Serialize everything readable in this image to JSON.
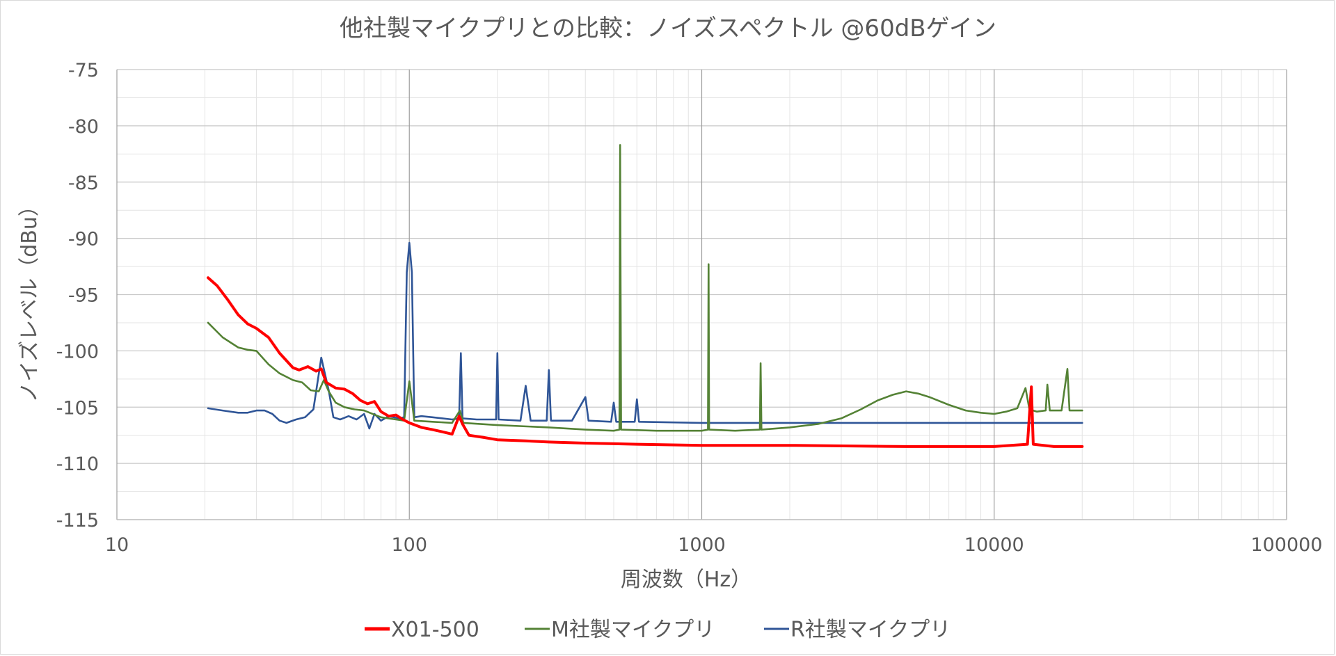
{
  "chart_data": {
    "type": "line",
    "title": "他社製マイクプリとの比較：ノイズスペクトル @60dBゲイン",
    "xlabel": "周波数（Hz）",
    "ylabel": "ノイズレベル（dBu）",
    "xscale": "log",
    "xlim": [
      10,
      100000
    ],
    "ylim": [
      -115,
      -75
    ],
    "x_ticks": [
      "10",
      "100",
      "1000",
      "10000",
      "100000"
    ],
    "y_ticks": [
      "-75",
      "-80",
      "-85",
      "-90",
      "-95",
      "-100",
      "-105",
      "-110",
      "-115"
    ],
    "grid": true,
    "legend_position": "bottom",
    "series": [
      {
        "name": "X01-500",
        "color": "#ff0000",
        "points": [
          [
            20.5,
            -93.5
          ],
          [
            22,
            -94.2
          ],
          [
            24,
            -95.5
          ],
          [
            26,
            -96.8
          ],
          [
            28,
            -97.6
          ],
          [
            30,
            -98.0
          ],
          [
            33,
            -98.8
          ],
          [
            36,
            -100.2
          ],
          [
            40,
            -101.5
          ],
          [
            42,
            -101.7
          ],
          [
            45,
            -101.4
          ],
          [
            48,
            -101.8
          ],
          [
            50,
            -101.6
          ],
          [
            52,
            -102.8
          ],
          [
            56,
            -103.3
          ],
          [
            60,
            -103.4
          ],
          [
            64,
            -103.8
          ],
          [
            68,
            -104.4
          ],
          [
            72,
            -104.7
          ],
          [
            76,
            -104.5
          ],
          [
            80,
            -105.4
          ],
          [
            85,
            -105.8
          ],
          [
            90,
            -105.7
          ],
          [
            95,
            -106.1
          ],
          [
            100,
            -106.4
          ],
          [
            110,
            -106.8
          ],
          [
            120,
            -107.0
          ],
          [
            130,
            -107.2
          ],
          [
            140,
            -107.4
          ],
          [
            148,
            -105.8
          ],
          [
            152,
            -106.5
          ],
          [
            160,
            -107.5
          ],
          [
            180,
            -107.7
          ],
          [
            200,
            -107.9
          ],
          [
            250,
            -108.0
          ],
          [
            300,
            -108.1
          ],
          [
            400,
            -108.2
          ],
          [
            600,
            -108.3
          ],
          [
            1000,
            -108.4
          ],
          [
            2000,
            -108.4
          ],
          [
            5000,
            -108.5
          ],
          [
            10000,
            -108.5
          ],
          [
            13000,
            -108.3
          ],
          [
            13400,
            -103.2
          ],
          [
            13600,
            -108.3
          ],
          [
            16000,
            -108.5
          ],
          [
            20000,
            -108.5
          ]
        ]
      },
      {
        "name": "M社製マイクプリ",
        "color": "#548235",
        "points": [
          [
            20.5,
            -97.5
          ],
          [
            23,
            -98.8
          ],
          [
            26,
            -99.7
          ],
          [
            28,
            -99.9
          ],
          [
            30,
            -100.0
          ],
          [
            33,
            -101.2
          ],
          [
            36,
            -102.0
          ],
          [
            40,
            -102.6
          ],
          [
            43,
            -102.8
          ],
          [
            46,
            -103.5
          ],
          [
            49,
            -103.6
          ],
          [
            51,
            -102.6
          ],
          [
            53,
            -103.6
          ],
          [
            56,
            -104.6
          ],
          [
            60,
            -105.0
          ],
          [
            65,
            -105.2
          ],
          [
            70,
            -105.3
          ],
          [
            80,
            -105.9
          ],
          [
            90,
            -106.1
          ],
          [
            96,
            -106.2
          ],
          [
            100,
            -102.7
          ],
          [
            104,
            -106.2
          ],
          [
            120,
            -106.3
          ],
          [
            140,
            -106.4
          ],
          [
            149,
            -105.3
          ],
          [
            153,
            -106.4
          ],
          [
            200,
            -106.6
          ],
          [
            300,
            -106.8
          ],
          [
            400,
            -107.0
          ],
          [
            500,
            -107.1
          ],
          [
            523,
            -107.0
          ],
          [
            526,
            -81.7
          ],
          [
            530,
            -107.0
          ],
          [
            700,
            -107.1
          ],
          [
            1000,
            -107.1
          ],
          [
            1050,
            -107.0
          ],
          [
            1055,
            -92.3
          ],
          [
            1060,
            -107.0
          ],
          [
            1300,
            -107.1
          ],
          [
            1580,
            -107.0
          ],
          [
            1590,
            -101.1
          ],
          [
            1600,
            -107.0
          ],
          [
            2000,
            -106.8
          ],
          [
            2500,
            -106.5
          ],
          [
            3000,
            -106.0
          ],
          [
            3500,
            -105.2
          ],
          [
            4000,
            -104.4
          ],
          [
            4500,
            -103.9
          ],
          [
            5000,
            -103.6
          ],
          [
            5500,
            -103.8
          ],
          [
            6000,
            -104.1
          ],
          [
            7000,
            -104.8
          ],
          [
            8000,
            -105.3
          ],
          [
            9000,
            -105.5
          ],
          [
            10000,
            -105.6
          ],
          [
            11000,
            -105.4
          ],
          [
            12000,
            -105.1
          ],
          [
            12800,
            -103.3
          ],
          [
            13200,
            -105.2
          ],
          [
            14000,
            -105.4
          ],
          [
            15000,
            -105.3
          ],
          [
            15200,
            -103.0
          ],
          [
            15500,
            -105.3
          ],
          [
            17000,
            -105.3
          ],
          [
            17800,
            -101.6
          ],
          [
            18100,
            -105.3
          ],
          [
            19000,
            -105.3
          ],
          [
            20000,
            -105.3
          ]
        ]
      },
      {
        "name": "R社製マイクプリ",
        "color": "#2f5597",
        "points": [
          [
            20.5,
            -105.1
          ],
          [
            23,
            -105.3
          ],
          [
            26,
            -105.5
          ],
          [
            28,
            -105.5
          ],
          [
            30,
            -105.3
          ],
          [
            32,
            -105.3
          ],
          [
            34,
            -105.6
          ],
          [
            36,
            -106.2
          ],
          [
            38,
            -106.4
          ],
          [
            41,
            -106.1
          ],
          [
            44,
            -105.9
          ],
          [
            47,
            -105.2
          ],
          [
            50,
            -100.6
          ],
          [
            53,
            -103.5
          ],
          [
            55,
            -105.9
          ],
          [
            58,
            -106.1
          ],
          [
            62,
            -105.8
          ],
          [
            66,
            -106.1
          ],
          [
            70,
            -105.6
          ],
          [
            73,
            -106.9
          ],
          [
            76,
            -105.6
          ],
          [
            80,
            -106.2
          ],
          [
            85,
            -105.8
          ],
          [
            92,
            -106.0
          ],
          [
            96,
            -105.9
          ],
          [
            98,
            -93.0
          ],
          [
            100,
            -90.4
          ],
          [
            102,
            -93.0
          ],
          [
            104,
            -105.9
          ],
          [
            110,
            -105.8
          ],
          [
            120,
            -105.9
          ],
          [
            140,
            -106.1
          ],
          [
            148,
            -106.0
          ],
          [
            150,
            -100.2
          ],
          [
            152,
            -106.0
          ],
          [
            170,
            -106.1
          ],
          [
            198,
            -106.1
          ],
          [
            200,
            -100.2
          ],
          [
            202,
            -106.1
          ],
          [
            240,
            -106.2
          ],
          [
            250,
            -103.1
          ],
          [
            260,
            -106.2
          ],
          [
            295,
            -106.2
          ],
          [
            300,
            -101.7
          ],
          [
            305,
            -106.2
          ],
          [
            360,
            -106.2
          ],
          [
            400,
            -104.1
          ],
          [
            410,
            -106.2
          ],
          [
            490,
            -106.3
          ],
          [
            500,
            -104.6
          ],
          [
            510,
            -106.3
          ],
          [
            590,
            -106.3
          ],
          [
            600,
            -104.3
          ],
          [
            610,
            -106.3
          ],
          [
            1000,
            -106.4
          ],
          [
            2000,
            -106.4
          ],
          [
            5000,
            -106.4
          ],
          [
            10000,
            -106.4
          ],
          [
            20000,
            -106.4
          ]
        ]
      }
    ]
  }
}
